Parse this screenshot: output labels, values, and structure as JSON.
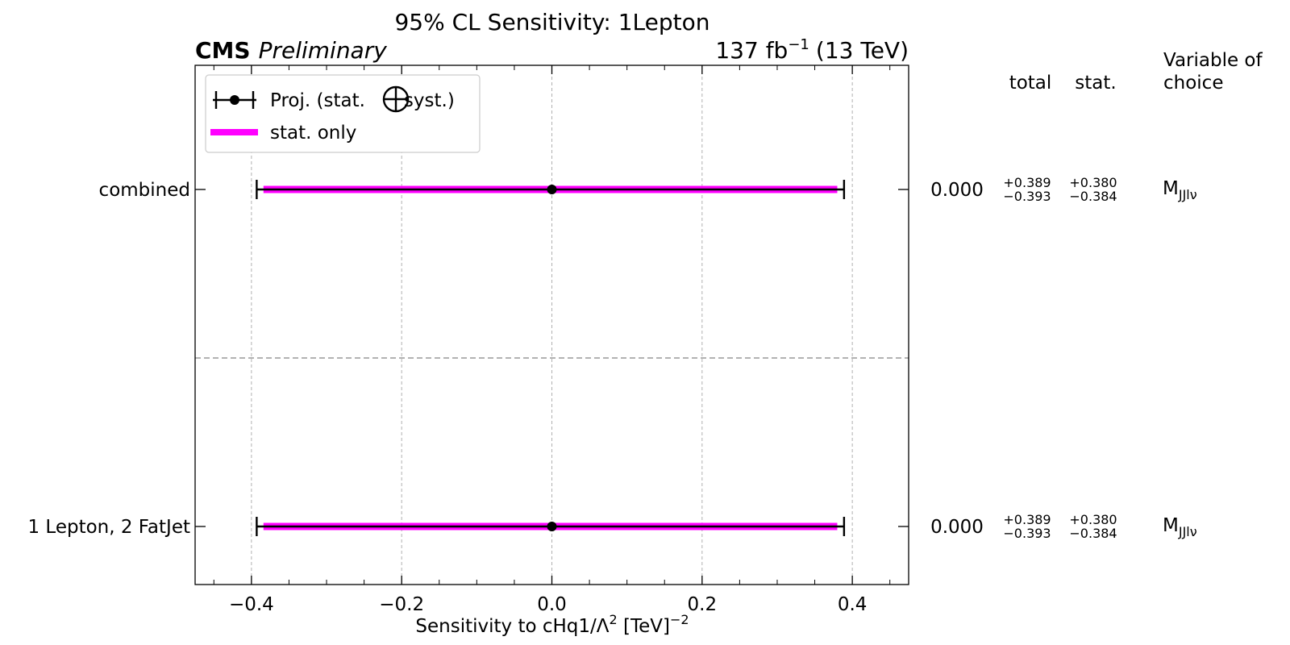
{
  "chart_data": {
    "type": "forest",
    "title": "95% CL Sensitivity: 1Lepton",
    "experiment": "CMS",
    "status": "Preliminary",
    "lumi": {
      "value": "137 fb",
      "exp": "−1",
      "energy": "(13 TeV)"
    },
    "xlabel": {
      "text": "Sensitivity to cHq1/Λ",
      "sup1": "2",
      "unit": " [TeV]",
      "sup2": "−2"
    },
    "xlim": [
      -0.475,
      0.475
    ],
    "xticks": [
      -0.4,
      -0.2,
      0.0,
      0.2,
      0.4
    ],
    "xtick_labels": [
      "−0.4",
      "−0.2",
      "0.0",
      "0.2",
      "0.4"
    ],
    "minor_step": 0.05,
    "grid": true,
    "legend": {
      "placement": "top-left",
      "entries": [
        {
          "kind": "errorbar",
          "pre": "Proj. (stat.",
          "post": "syst.)"
        },
        {
          "kind": "line",
          "label": "stat. only"
        }
      ]
    },
    "table_headers": {
      "total": "total",
      "stat": "stat.",
      "variable": [
        "Variable of",
        "choice"
      ]
    },
    "rows": [
      {
        "label": "combined",
        "central": 0.0,
        "total_up": 0.389,
        "total_down": 0.393,
        "stat_up": 0.38,
        "stat_down": 0.384,
        "value_text": "0.000",
        "total_up_text": "+0.389",
        "total_down_text": "−0.393",
        "stat_up_text": "+0.380",
        "stat_down_text": "−0.384",
        "variable": "M",
        "variable_sub": "JJlν"
      },
      {
        "label": "1 Lepton, 2 FatJet",
        "central": 0.0,
        "total_up": 0.389,
        "total_down": 0.393,
        "stat_up": 0.38,
        "stat_down": 0.384,
        "value_text": "0.000",
        "total_up_text": "+0.389",
        "total_down_text": "−0.393",
        "stat_up_text": "+0.380",
        "stat_down_text": "−0.384",
        "variable": "M",
        "variable_sub": "JJlν"
      }
    ],
    "colors": {
      "stat": "#ff00ff",
      "total": "#000000",
      "grid": "#b0b0b0",
      "separator": "#999999"
    }
  }
}
